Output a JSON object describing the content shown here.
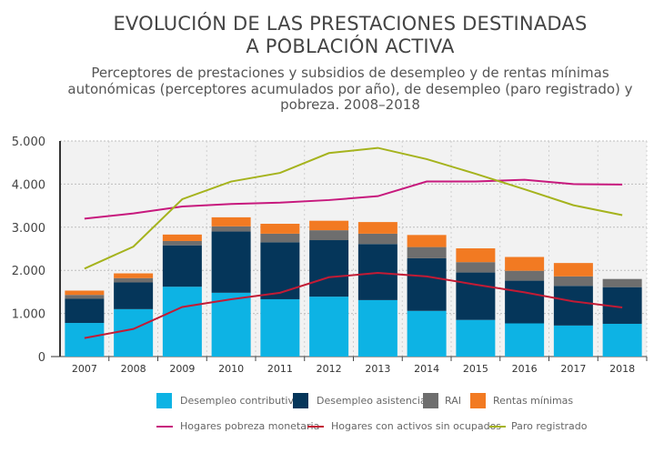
{
  "chart_data": {
    "type": "bar",
    "title_lines": [
      "EVOLUCIÓN DE LAS PRESTACIONES DESTINADAS",
      "A POBLACIÓN ACTIVA"
    ],
    "subtitle_lines": [
      "Perceptores de prestaciones y subsidios de desempleo y de rentas mínimas",
      "autonómicas (perceptores acumulados por año), de desempleo (paro registrado) y",
      "pobreza. 2008–2018"
    ],
    "categories": [
      "2007",
      "2008",
      "2009",
      "2010",
      "2011",
      "2012",
      "2013",
      "2014",
      "2015",
      "2016",
      "2017",
      "2018"
    ],
    "ylim": [
      0,
      5000
    ],
    "yticks": [
      0,
      1000,
      2000,
      3000,
      4000,
      5000
    ],
    "ytick_labels": [
      "0",
      "1.000",
      "2.000",
      "3.000",
      "4.000",
      "5.000"
    ],
    "grid": true,
    "stacked_series": [
      {
        "name": "Desempleo contributivo",
        "color": "#0db3e4",
        "values": [
          780,
          1100,
          1620,
          1480,
          1330,
          1390,
          1310,
          1060,
          850,
          770,
          720,
          760
        ]
      },
      {
        "name": "Desempleo asistencial",
        "color": "#05365a",
        "values": [
          560,
          620,
          960,
          1420,
          1320,
          1310,
          1300,
          1220,
          1100,
          990,
          920,
          850
        ]
      },
      {
        "name": "RAI",
        "color": "#6e6e6e",
        "values": [
          90,
          100,
          100,
          120,
          200,
          230,
          240,
          260,
          240,
          230,
          220,
          190
        ]
      },
      {
        "name": "Rentas mínimas",
        "color": "#f27a22",
        "values": [
          100,
          110,
          150,
          210,
          230,
          220,
          270,
          280,
          320,
          320,
          310,
          0
        ]
      }
    ],
    "line_series": [
      {
        "name": "Hogares pobreza monetaria",
        "color": "#c7197d",
        "values": [
          3200,
          3320,
          3480,
          3540,
          3570,
          3630,
          3720,
          4060,
          4060,
          4100,
          4000,
          3990
        ]
      },
      {
        "name": "Hogares con activos sin ocupados",
        "color": "#c21b35",
        "values": [
          430,
          640,
          1150,
          1330,
          1480,
          1840,
          1940,
          1860,
          1670,
          1490,
          1280,
          1140
        ]
      },
      {
        "name": "Paro registrado",
        "color": "#a5b31d",
        "values": [
          2040,
          2550,
          3650,
          4060,
          4260,
          4720,
          4840,
          4580,
          4240,
          3880,
          3510,
          3280
        ]
      }
    ],
    "legend_position": "bottom"
  },
  "colors": {
    "plot_background": "#f2f2f2",
    "grid": "#bdbdbd"
  }
}
